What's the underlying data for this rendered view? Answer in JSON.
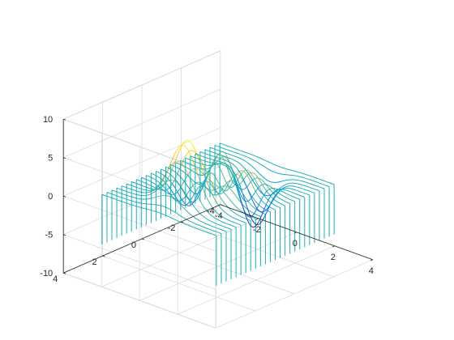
{
  "chart_data": {
    "type": "waterfall",
    "function": "peaks",
    "grid": true,
    "box": true,
    "colormap": "parula",
    "colormap_stops": [
      "#352a87",
      "#0f5cdd",
      "#1481d6",
      "#06a4ca",
      "#2eb7a4",
      "#87bf77",
      "#d1bb59",
      "#fec832",
      "#f9fb0e"
    ],
    "xlim": [
      -4,
      4
    ],
    "ylim": [
      -4,
      4
    ],
    "zlim": [
      -10,
      10
    ],
    "xticks": [
      -4,
      -2,
      0,
      2,
      4
    ],
    "yticks": [
      -4,
      -2,
      0,
      2,
      4
    ],
    "zticks": [
      -10,
      -5,
      0,
      5,
      10
    ],
    "xtick_labels": [
      "-4",
      "-2",
      "0",
      "2",
      "4"
    ],
    "ytick_labels": [
      "-4",
      "-2",
      "0",
      "2",
      "4"
    ],
    "ztick_labels": [
      "-10",
      "-5",
      "0",
      "5",
      "10"
    ],
    "x_range": [
      -3,
      3
    ],
    "y_range": [
      -3,
      3
    ],
    "rows": 25,
    "curtain_base": -6.5,
    "color_range": [
      -6.5,
      8.1
    ]
  }
}
